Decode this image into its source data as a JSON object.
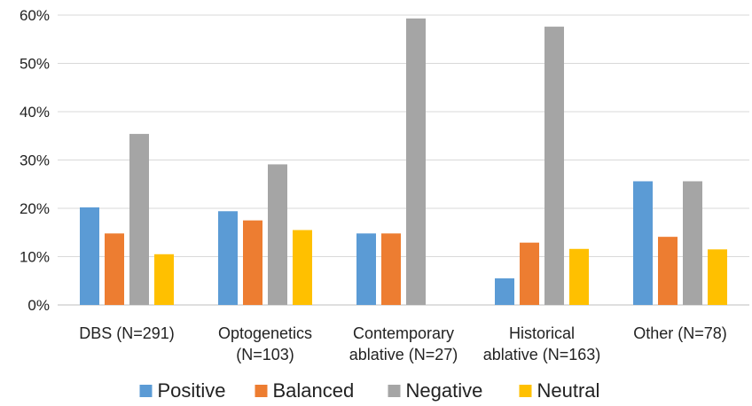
{
  "chart_data": {
    "type": "bar",
    "title": "",
    "xlabel": "",
    "ylabel": "",
    "ylim": [
      0,
      0.6
    ],
    "yticks": [
      0,
      0.1,
      0.2,
      0.3,
      0.4,
      0.5,
      0.6
    ],
    "ytick_labels": [
      "0%",
      "10%",
      "20%",
      "30%",
      "40%",
      "50%",
      "60%"
    ],
    "grid": true,
    "legend_position": "bottom",
    "categories": [
      [
        "DBS (N=291)"
      ],
      [
        "Optogenetics",
        "(N=103)"
      ],
      [
        "Contemporary",
        "ablative (N=27)"
      ],
      [
        "Historical",
        "ablative (N=163)"
      ],
      [
        "Other (N=78)"
      ]
    ],
    "series": [
      {
        "name": "Positive",
        "color": "#5B9BD5",
        "values": [
          0.202,
          0.194,
          0.148,
          0.055,
          0.256
        ]
      },
      {
        "name": "Balanced",
        "color": "#ED7D31",
        "values": [
          0.148,
          0.175,
          0.148,
          0.129,
          0.141
        ]
      },
      {
        "name": "Negative",
        "color": "#A5A5A5",
        "values": [
          0.354,
          0.291,
          0.593,
          0.576,
          0.256
        ]
      },
      {
        "name": "Neutral",
        "color": "#FFC000",
        "values": [
          0.105,
          0.155,
          0.0,
          0.116,
          0.115
        ]
      }
    ]
  }
}
